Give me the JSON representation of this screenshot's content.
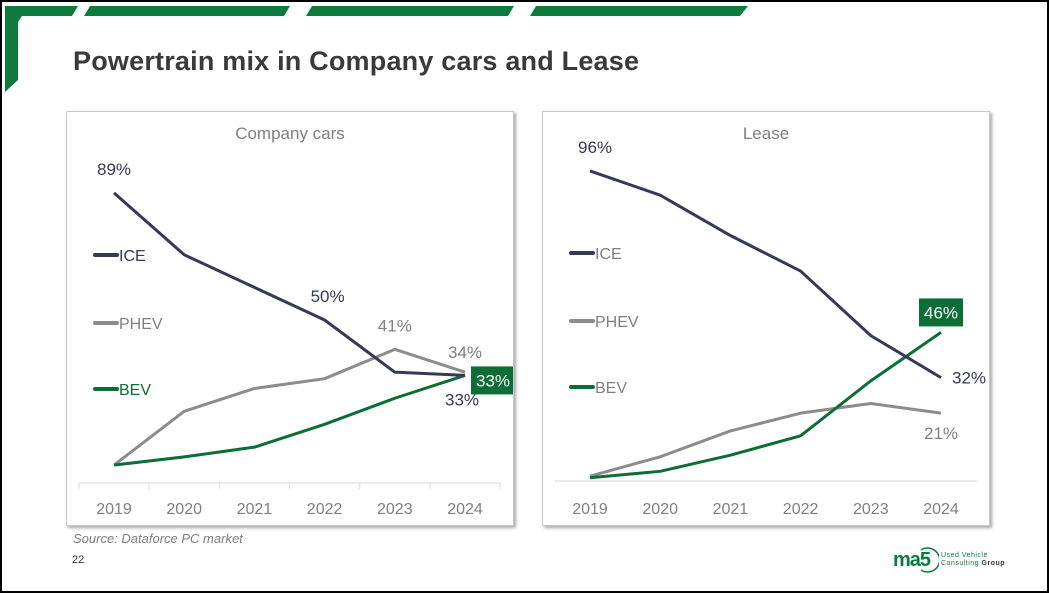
{
  "page": {
    "title": "Powertrain mix in Company cars and Lease",
    "source": "Source: Dataforce PC market",
    "page_number": "22",
    "logo": {
      "mark": "ma5",
      "line1": "Used Vehicle",
      "line2a": "Consulting ",
      "line2b": "Group"
    }
  },
  "colors": {
    "ICE": "#353a56",
    "PHEV": "#8c8c8c",
    "BEV": "#0b6e36",
    "brand_green": "#0b7a3b",
    "axis": "#d9d9d9",
    "tick_text": "#7f7f7f"
  },
  "chart_data": [
    {
      "type": "line",
      "title": "Company cars",
      "xlabel": "",
      "ylabel": "",
      "categories": [
        "2019",
        "2020",
        "2021",
        "2022",
        "2023",
        "2024"
      ],
      "ylim": [
        0,
        100
      ],
      "grid": false,
      "legend": "left",
      "series": [
        {
          "name": "ICE",
          "values": [
            89,
            70,
            60,
            50,
            34,
            33
          ]
        },
        {
          "name": "PHEV",
          "values": [
            5.5,
            22,
            29,
            32,
            41,
            34
          ]
        },
        {
          "name": "BEV",
          "values": [
            5.5,
            8,
            11,
            18,
            26,
            33
          ]
        }
      ],
      "data_labels": [
        {
          "series": "ICE",
          "index": 0,
          "text": "89%"
        },
        {
          "series": "ICE",
          "index": 3,
          "text": "50%"
        },
        {
          "series": "ICE",
          "index": 5,
          "text": "33%"
        },
        {
          "series": "PHEV",
          "index": 4,
          "text": "41%"
        },
        {
          "series": "PHEV",
          "index": 5,
          "text": "34%"
        },
        {
          "series": "BEV",
          "index": 5,
          "text": "33%",
          "highlight": true
        }
      ]
    },
    {
      "type": "line",
      "title": "Lease",
      "xlabel": "",
      "ylabel": "",
      "categories": [
        "2019",
        "2020",
        "2021",
        "2022",
        "2023",
        "2024"
      ],
      "ylim": [
        0,
        100
      ],
      "grid": false,
      "legend": "left",
      "series": [
        {
          "name": "ICE",
          "values": [
            96,
            88.5,
            76,
            65,
            45,
            32
          ]
        },
        {
          "name": "PHEV",
          "values": [
            1.5,
            7.5,
            15.5,
            21,
            24,
            21
          ]
        },
        {
          "name": "BEV",
          "values": [
            1,
            3,
            8,
            14,
            31,
            46
          ]
        }
      ],
      "data_labels": [
        {
          "series": "ICE",
          "index": 0,
          "text": "96%"
        },
        {
          "series": "ICE",
          "index": 5,
          "text": "32%"
        },
        {
          "series": "PHEV",
          "index": 5,
          "text": "21%"
        },
        {
          "series": "BEV",
          "index": 5,
          "text": "46%",
          "highlight": true
        }
      ]
    }
  ]
}
